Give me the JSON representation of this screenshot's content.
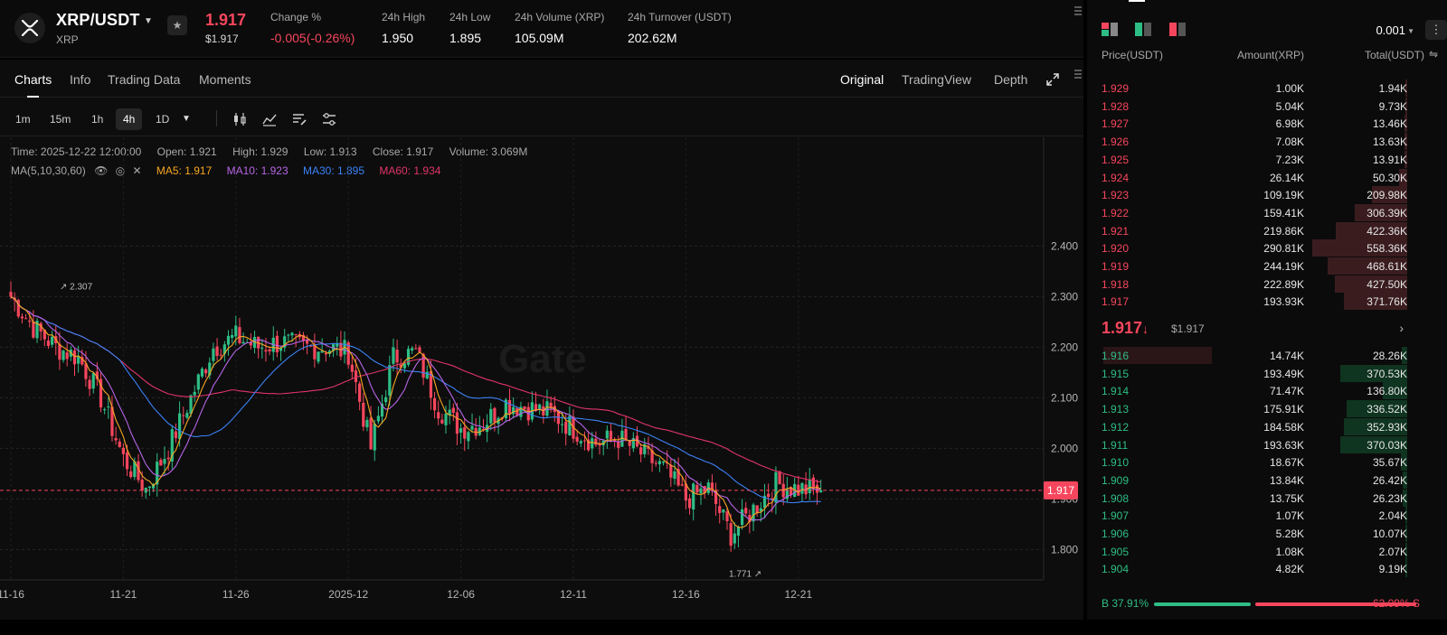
{
  "header": {
    "pair": "XRP/USDT",
    "base": "XRP",
    "last_price": "1.917",
    "last_price_usd": "$1.917",
    "stats": [
      {
        "label": "Change %",
        "value": "-0.005(-0.26%)",
        "negative": true
      },
      {
        "label": "24h High",
        "value": "1.950"
      },
      {
        "label": "24h Low",
        "value": "1.895"
      },
      {
        "label": "24h Volume (XRP)",
        "value": "105.09M"
      },
      {
        "label": "24h Turnover (USDT)",
        "value": "202.62M"
      }
    ]
  },
  "chart_tabs": {
    "left": [
      "Charts",
      "Info",
      "Trading Data",
      "Moments"
    ],
    "right": [
      "Original",
      "TradingView",
      "Depth"
    ]
  },
  "toolbar": {
    "intervals": [
      "1m",
      "15m",
      "1h",
      "4h",
      "1D"
    ],
    "active_interval": "4h",
    "icons": [
      "candle-type-icon",
      "indicators-icon",
      "drawing-tools-icon",
      "settings-icon"
    ]
  },
  "ohlc": {
    "time": "Time: 2025-12-22 12:00:00",
    "open": "Open: 1.921",
    "high": "High: 1.929",
    "low": "Low: 1.913",
    "close": "Close: 1.917",
    "volume": "Volume: 3.069M"
  },
  "ma": {
    "label": "MA(5,10,30,60)",
    "ma5": "MA5: 1.917",
    "ma10": "MA10: 1.923",
    "ma30": "MA30: 1.895",
    "ma60": "MA60: 1.934",
    "colors": {
      "ma5": "#f5a623",
      "ma10": "#b665e6",
      "ma30": "#3b82f6",
      "ma60": "#e0356a"
    }
  },
  "chart_data": {
    "type": "candlestick",
    "interval": "4h",
    "y_ticks": [
      "2.400",
      "2.300",
      "2.200",
      "2.100",
      "2.000",
      "1.900",
      "1.800"
    ],
    "ylim": [
      1.74,
      2.49
    ],
    "x_ticks": [
      "11-16",
      "11-21",
      "11-26",
      "2025-12",
      "12-06",
      "12-11",
      "12-16",
      "12-21"
    ],
    "current_price_label": "1.917",
    "current_price": 1.917,
    "annotations": {
      "high": "2.307",
      "low": "1.771"
    },
    "watermark": "Gate",
    "key_points": [
      {
        "x": "11-16",
        "close": 2.3
      },
      {
        "x": "11-17",
        "close": 2.24
      },
      {
        "x": "11-18",
        "close": 2.2
      },
      {
        "x": "11-19",
        "close": 2.18
      },
      {
        "x": "11-20",
        "close": 2.1
      },
      {
        "x": "11-21",
        "close": 1.98
      },
      {
        "x": "11-22",
        "close": 1.92
      },
      {
        "x": "11-23",
        "close": 2.0
      },
      {
        "x": "11-24",
        "close": 2.1
      },
      {
        "x": "11-25",
        "close": 2.2
      },
      {
        "x": "11-26",
        "close": 2.22
      },
      {
        "x": "11-27",
        "close": 2.2
      },
      {
        "x": "11-28",
        "close": 2.21
      },
      {
        "x": "11-29",
        "close": 2.2
      },
      {
        "x": "11-30",
        "close": 2.2
      },
      {
        "x": "2025-12",
        "close": 2.19
      },
      {
        "x": "12-02",
        "close": 2.0
      },
      {
        "x": "12-03",
        "close": 2.18
      },
      {
        "x": "12-04",
        "close": 2.19
      },
      {
        "x": "12-05",
        "close": 2.08
      },
      {
        "x": "12-06",
        "close": 2.04
      },
      {
        "x": "12-07",
        "close": 2.05
      },
      {
        "x": "12-08",
        "close": 2.09
      },
      {
        "x": "12-09",
        "close": 2.08
      },
      {
        "x": "12-10",
        "close": 2.07
      },
      {
        "x": "12-11",
        "close": 2.04
      },
      {
        "x": "12-12",
        "close": 2.01
      },
      {
        "x": "12-13",
        "close": 2.02
      },
      {
        "x": "12-14",
        "close": 1.99
      },
      {
        "x": "12-15",
        "close": 1.96
      },
      {
        "x": "12-16",
        "close": 1.9
      },
      {
        "x": "12-17",
        "close": 1.92
      },
      {
        "x": "12-18",
        "close": 1.83
      },
      {
        "x": "12-19",
        "close": 1.88
      },
      {
        "x": "12-20",
        "close": 1.93
      },
      {
        "x": "12-21",
        "close": 1.92
      },
      {
        "x": "12-22",
        "close": 1.917
      }
    ]
  },
  "order_book": {
    "precision": "0.001",
    "headers": {
      "price": "Price(USDT)",
      "amount": "Amount(XRP)",
      "total": "Total(USDT)"
    },
    "asks": [
      {
        "price": "1.929",
        "amount": "1.00K",
        "total": "1.94K",
        "depth": 0.003
      },
      {
        "price": "1.928",
        "amount": "5.04K",
        "total": "9.73K",
        "depth": 0.017
      },
      {
        "price": "1.927",
        "amount": "6.98K",
        "total": "13.46K",
        "depth": 0.024
      },
      {
        "price": "1.926",
        "amount": "7.08K",
        "total": "13.63K",
        "depth": 0.024
      },
      {
        "price": "1.925",
        "amount": "7.23K",
        "total": "13.91K",
        "depth": 0.025
      },
      {
        "price": "1.924",
        "amount": "26.14K",
        "total": "50.30K",
        "depth": 0.09
      },
      {
        "price": "1.923",
        "amount": "109.19K",
        "total": "209.98K",
        "depth": 0.376
      },
      {
        "price": "1.922",
        "amount": "159.41K",
        "total": "306.39K",
        "depth": 0.549
      },
      {
        "price": "1.921",
        "amount": "219.86K",
        "total": "422.36K",
        "depth": 0.756
      },
      {
        "price": "1.920",
        "amount": "290.81K",
        "total": "558.36K",
        "depth": 1.0
      },
      {
        "price": "1.919",
        "amount": "244.19K",
        "total": "468.61K",
        "depth": 0.839
      },
      {
        "price": "1.918",
        "amount": "222.89K",
        "total": "427.50K",
        "depth": 0.766
      },
      {
        "price": "1.917",
        "amount": "193.93K",
        "total": "371.76K",
        "depth": 0.666
      }
    ],
    "mid": {
      "price": "1.917",
      "usd": "$1.917"
    },
    "bids": [
      {
        "price": "1.916",
        "amount": "14.74K",
        "total": "28.26K",
        "depth": 0.054
      },
      {
        "price": "1.915",
        "amount": "193.49K",
        "total": "370.53K",
        "depth": 0.701
      },
      {
        "price": "1.914",
        "amount": "71.47K",
        "total": "136.80K",
        "depth": 0.259
      },
      {
        "price": "1.913",
        "amount": "175.91K",
        "total": "336.52K",
        "depth": 0.637
      },
      {
        "price": "1.912",
        "amount": "184.58K",
        "total": "352.93K",
        "depth": 0.668
      },
      {
        "price": "1.911",
        "amount": "193.63K",
        "total": "370.03K",
        "depth": 0.701
      },
      {
        "price": "1.910",
        "amount": "18.67K",
        "total": "35.67K",
        "depth": 0.068
      },
      {
        "price": "1.909",
        "amount": "13.84K",
        "total": "26.42K",
        "depth": 0.05
      },
      {
        "price": "1.908",
        "amount": "13.75K",
        "total": "26.23K",
        "depth": 0.05
      },
      {
        "price": "1.907",
        "amount": "1.07K",
        "total": "2.04K",
        "depth": 0.004
      },
      {
        "price": "1.906",
        "amount": "5.28K",
        "total": "10.07K",
        "depth": 0.019
      },
      {
        "price": "1.905",
        "amount": "1.08K",
        "total": "2.07K",
        "depth": 0.004
      },
      {
        "price": "1.904",
        "amount": "4.82K",
        "total": "9.19K",
        "depth": 0.017
      }
    ],
    "buy_ratio_label": "B 37.91%",
    "sell_ratio_label": "62.09% S",
    "buy_ratio": 0.3791
  }
}
